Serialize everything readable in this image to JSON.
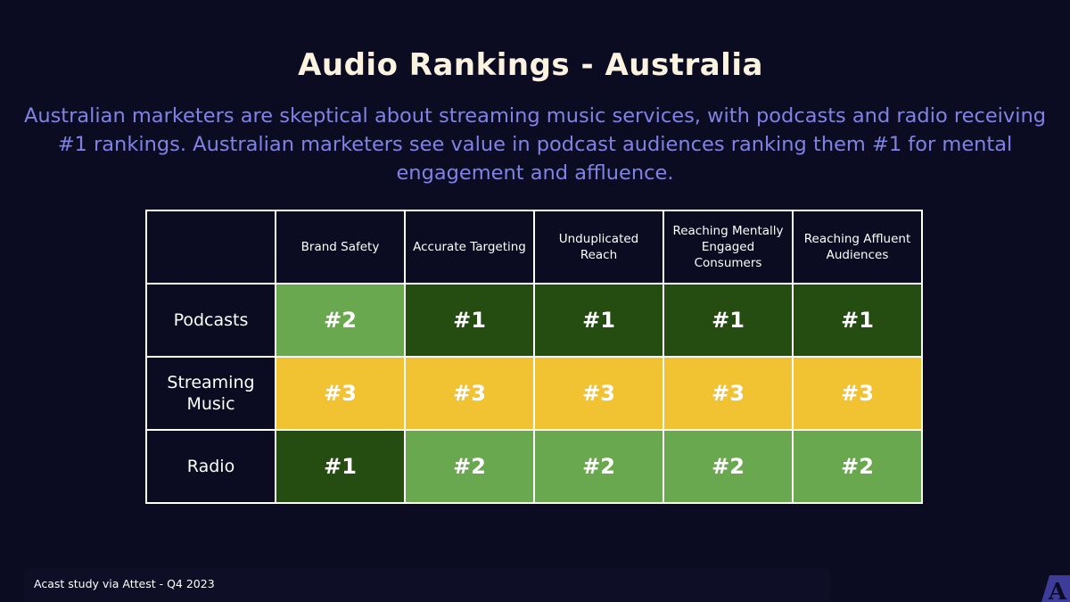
{
  "title": "Audio Rankings - Australia",
  "subtitle": "Australian marketers are skeptical about streaming music services, with podcasts and radio receiving #1 rankings. Australian marketers see value in podcast audiences ranking them #1 for mental engagement and affluence.",
  "table": {
    "columns": [
      "Brand Safety",
      "Accurate Targeting",
      "Unduplicated Reach",
      "Reaching Mentally Engaged Consumers",
      "Reaching Affluent Audiences"
    ],
    "rows": [
      {
        "label": "Podcasts",
        "ranks": [
          "#2",
          "#1",
          "#1",
          "#1",
          "#1"
        ]
      },
      {
        "label": "Streaming Music",
        "ranks": [
          "#3",
          "#3",
          "#3",
          "#3",
          "#3"
        ]
      },
      {
        "label": "Radio",
        "ranks": [
          "#1",
          "#2",
          "#2",
          "#2",
          "#2"
        ]
      }
    ]
  },
  "rank_colors": {
    "#1": "#264d11",
    "#2": "#6aa84f",
    "#3": "#f1c232"
  },
  "source": "Acast study via Attest - Q4 2023",
  "logo_icon": "acast-logo-icon",
  "colors": {
    "background": "#0b0b21",
    "title": "#fbf3df",
    "subtitle": "#8282e6"
  }
}
